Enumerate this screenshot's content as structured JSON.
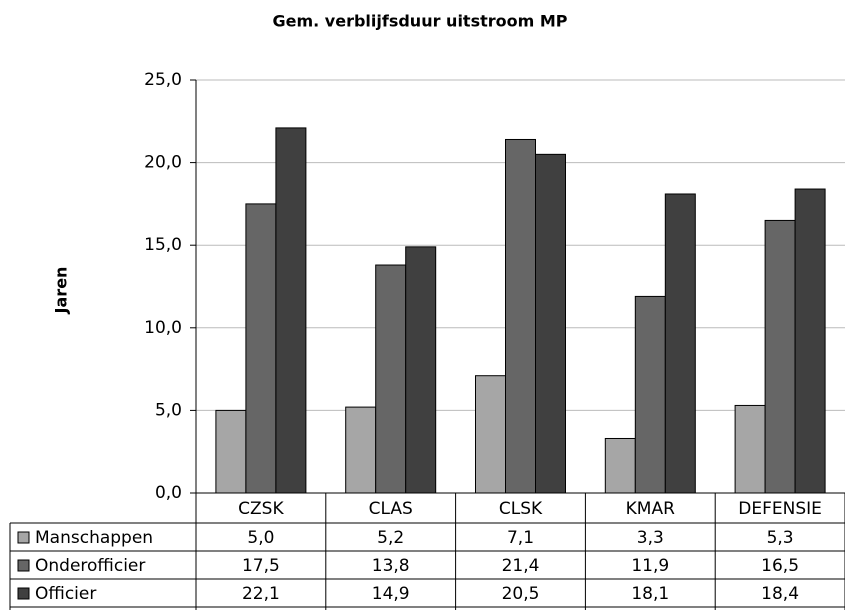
{
  "chart_data": {
    "type": "bar",
    "title": "Gem. verblijfsduur uitstroom MP",
    "y_label": "Jaren",
    "categories": [
      "CZSK",
      "CLAS",
      "CLSK",
      "KMAR",
      "DEFENSIE"
    ],
    "series": [
      {
        "name": "Manschappen",
        "color": "#a6a6a6",
        "values": [
          5.0,
          5.2,
          7.1,
          3.3,
          5.3
        ],
        "value_labels": [
          "5,0",
          "5,2",
          "7,1",
          "3,3",
          "5,3"
        ]
      },
      {
        "name": "Onderofficier",
        "color": "#666666",
        "values": [
          17.5,
          13.8,
          21.4,
          11.9,
          16.5
        ],
        "value_labels": [
          "17,5",
          "13,8",
          "21,4",
          "11,9",
          "16,5"
        ]
      },
      {
        "name": "Officier",
        "color": "#404040",
        "values": [
          22.1,
          14.9,
          20.5,
          18.1,
          18.4
        ],
        "value_labels": [
          "22,1",
          "14,9",
          "20,5",
          "18,1",
          "18,4"
        ]
      }
    ],
    "ylim": [
      0,
      25
    ],
    "yticks": [
      {
        "value": 0,
        "label": "0,0"
      },
      {
        "value": 5,
        "label": "5,0"
      },
      {
        "value": 10,
        "label": "10,0"
      },
      {
        "value": 15,
        "label": "15,0"
      },
      {
        "value": 20,
        "label": "20,0"
      },
      {
        "value": 25,
        "label": "25,0"
      }
    ],
    "grid": true
  }
}
